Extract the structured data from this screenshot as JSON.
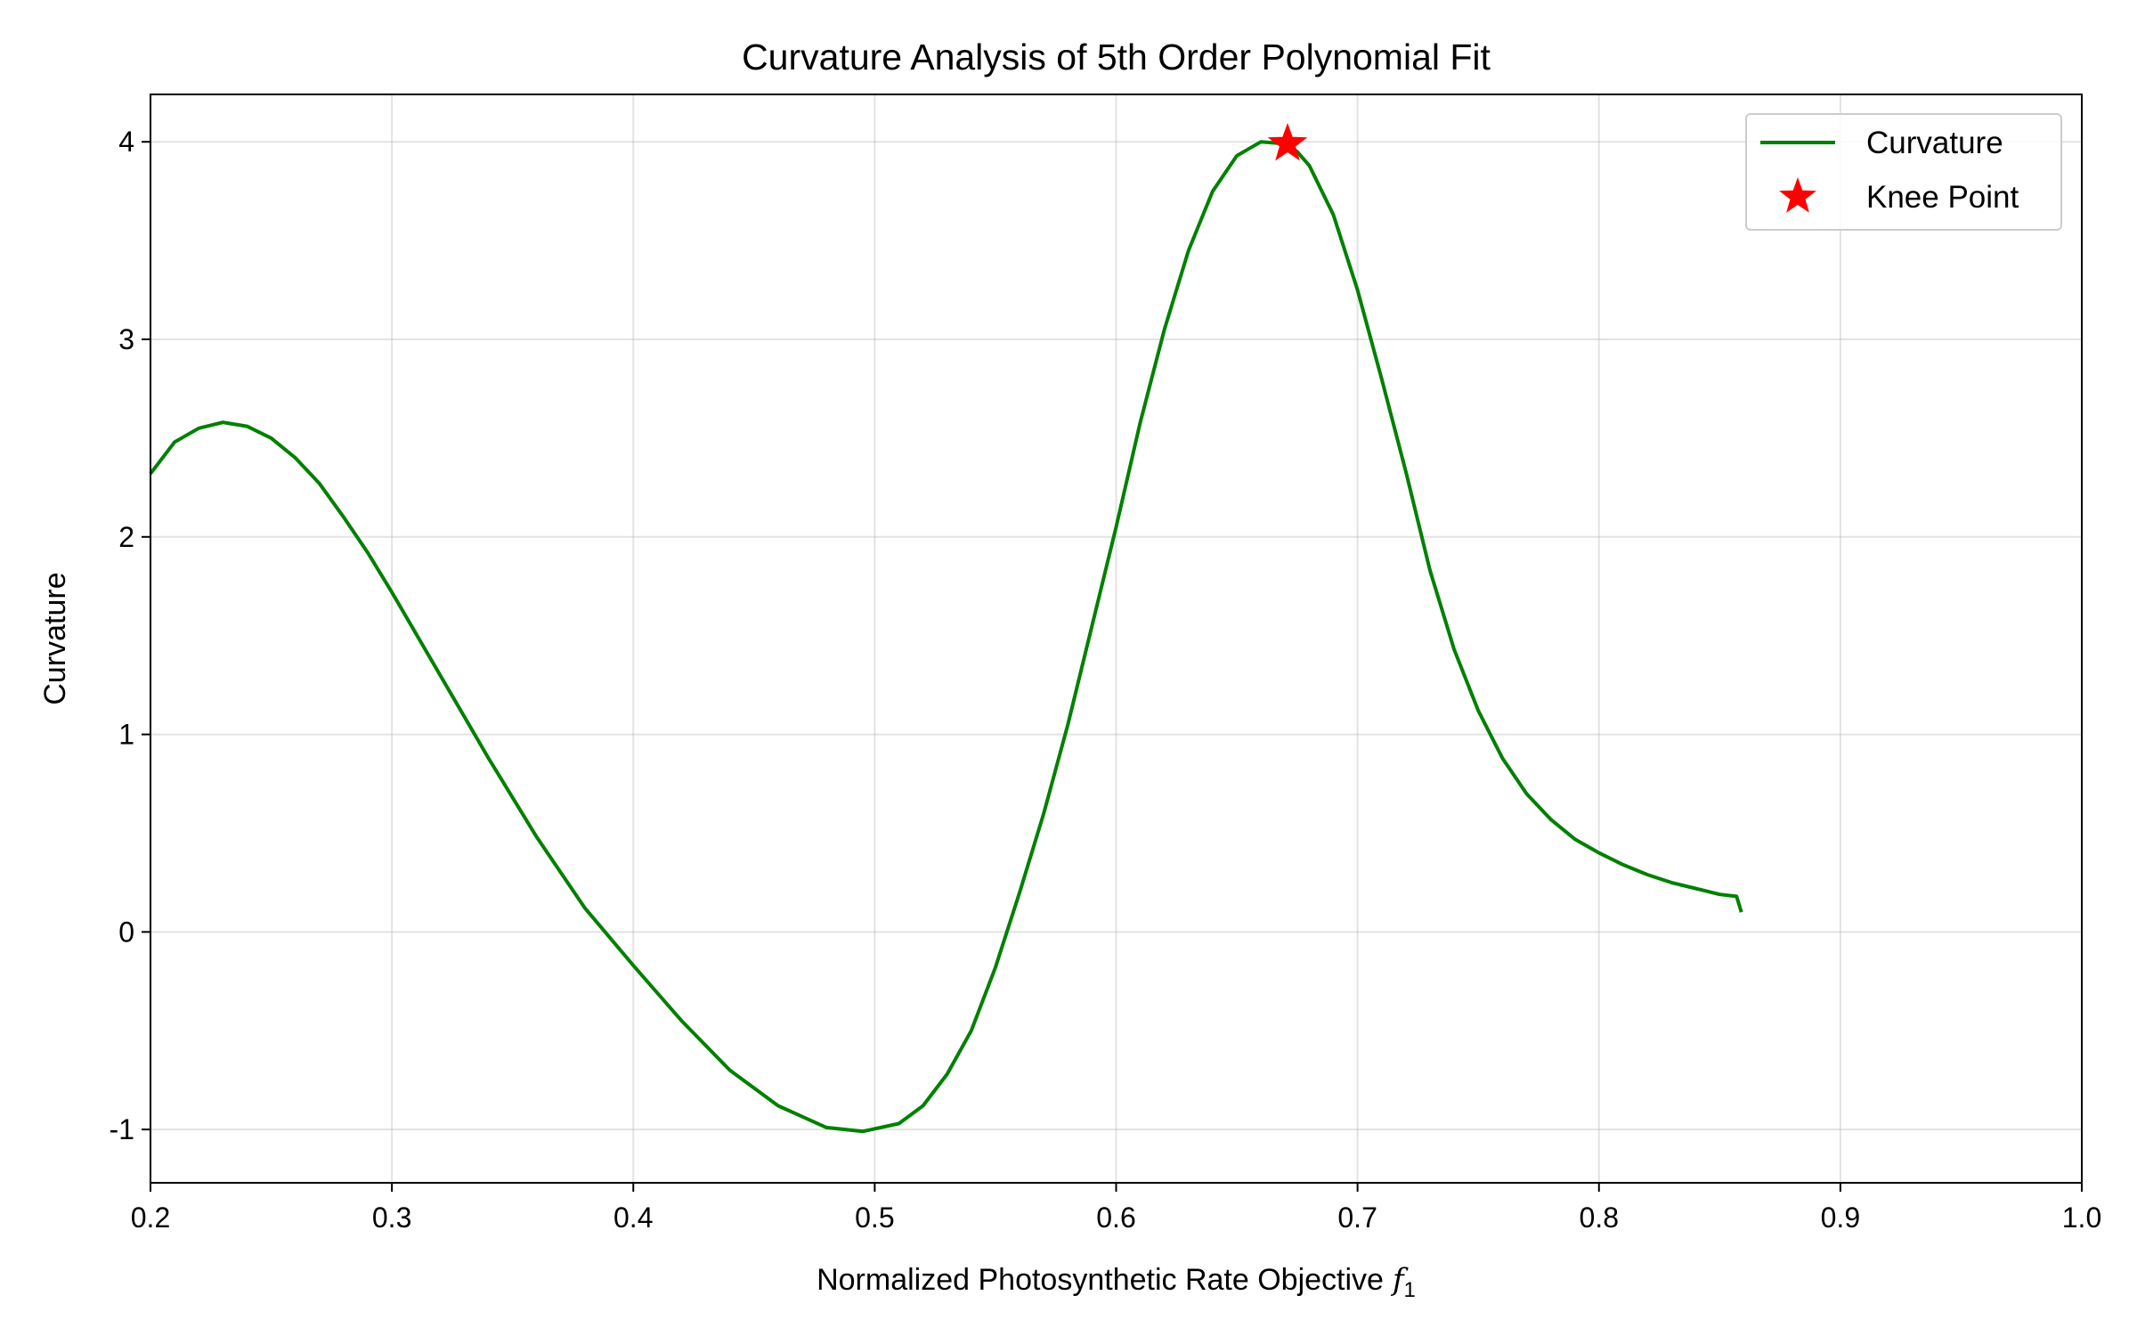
{
  "chart_data": {
    "type": "line",
    "title": "Curvature Analysis of 5th Order Polynomial Fit",
    "xlabel": "Normalized Photosynthetic Rate Objective",
    "xlabel_symbol": "f",
    "xlabel_subscript": "1",
    "ylabel": "Curvature",
    "xlim": [
      0.2,
      1.0
    ],
    "ylim": [
      -1.27,
      4.24
    ],
    "xticks": [
      0.2,
      0.3,
      0.4,
      0.5,
      0.6,
      0.7,
      0.8,
      0.9,
      1.0
    ],
    "xtick_labels": [
      "0.2",
      "0.3",
      "0.4",
      "0.5",
      "0.6",
      "0.7",
      "0.8",
      "0.9",
      "1.0"
    ],
    "yticks": [
      -1,
      0,
      1,
      2,
      3,
      4
    ],
    "ytick_labels": [
      "-1",
      "0",
      "1",
      "2",
      "3",
      "4"
    ],
    "grid": true,
    "legend_position": "top-right",
    "series": [
      {
        "name": "Curvature",
        "kind": "line",
        "color": "#008000",
        "x": [
          0.2,
          0.21,
          0.22,
          0.23,
          0.24,
          0.25,
          0.26,
          0.27,
          0.28,
          0.29,
          0.3,
          0.32,
          0.34,
          0.36,
          0.38,
          0.4,
          0.42,
          0.44,
          0.46,
          0.48,
          0.495,
          0.51,
          0.52,
          0.53,
          0.54,
          0.55,
          0.56,
          0.57,
          0.58,
          0.59,
          0.6,
          0.61,
          0.62,
          0.63,
          0.64,
          0.65,
          0.66,
          0.67,
          0.675,
          0.68,
          0.69,
          0.7,
          0.71,
          0.72,
          0.73,
          0.74,
          0.75,
          0.76,
          0.77,
          0.78,
          0.79,
          0.8,
          0.81,
          0.82,
          0.83,
          0.84,
          0.85,
          0.857,
          0.858,
          0.859
        ],
        "y": [
          2.32,
          2.48,
          2.55,
          2.58,
          2.56,
          2.5,
          2.4,
          2.27,
          2.1,
          1.92,
          1.72,
          1.3,
          0.88,
          0.48,
          0.12,
          -0.17,
          -0.45,
          -0.7,
          -0.88,
          -0.99,
          -1.01,
          -0.97,
          -0.88,
          -0.72,
          -0.5,
          -0.18,
          0.2,
          0.6,
          1.05,
          1.55,
          2.05,
          2.58,
          3.05,
          3.45,
          3.75,
          3.93,
          4.0,
          3.99,
          3.95,
          3.88,
          3.63,
          3.25,
          2.8,
          2.33,
          1.83,
          1.43,
          1.12,
          0.88,
          0.7,
          0.57,
          0.47,
          0.4,
          0.34,
          0.29,
          0.25,
          0.22,
          0.19,
          0.18,
          0.14,
          0.1
        ]
      },
      {
        "name": "Knee Point",
        "kind": "scatter",
        "marker": "star",
        "color": "#ff0000",
        "x": [
          0.671
        ],
        "y": [
          3.99
        ]
      }
    ]
  }
}
